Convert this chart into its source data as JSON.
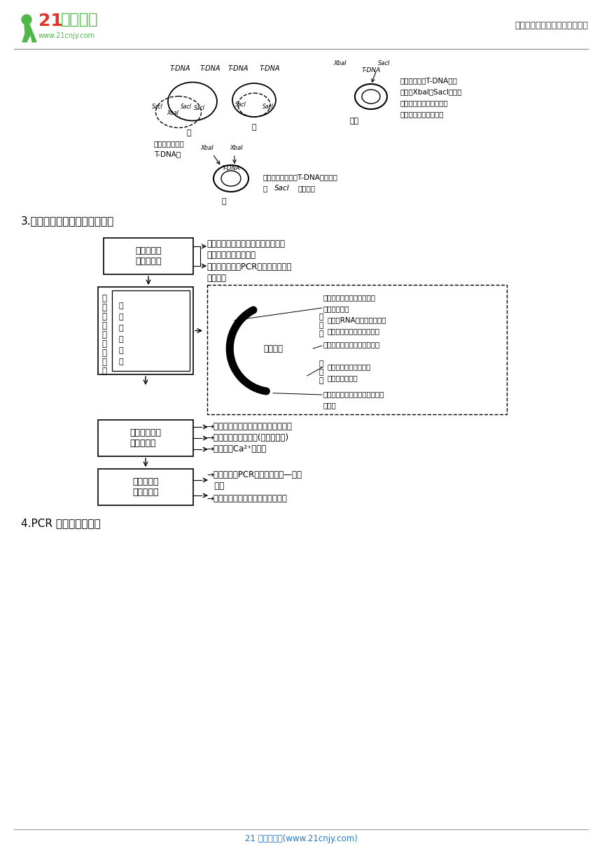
{
  "page_bg": "#ffffff",
  "header_right": "中小学教育资源及组卷应用平台",
  "footer_text": "21 世纪教育网(www.21cnjy.com)",
  "section3_title": "3.熟记基因工程的四个操作步骤",
  "section4_title": "4.PCR 技术原理与条件",
  "logo_text1": "21世纪教育",
  "logo_url": "www.21cnjy.com"
}
